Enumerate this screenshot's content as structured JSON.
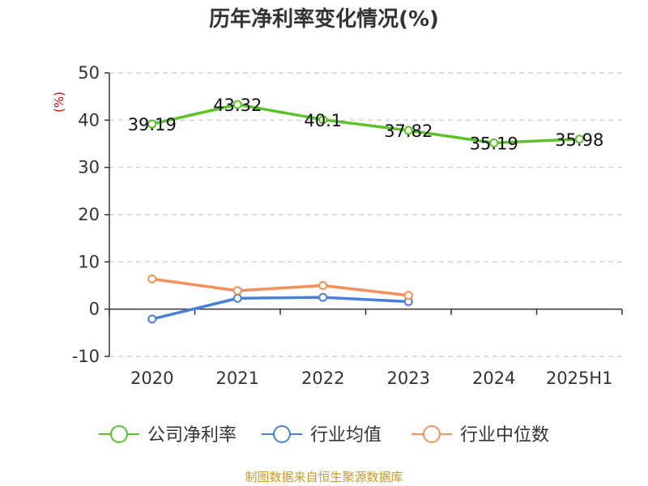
{
  "chart_data": {
    "type": "line",
    "title": "历年净利率变化情况(%)",
    "ylabel": "(%)",
    "xlabel": "",
    "categories": [
      "2020",
      "2021",
      "2022",
      "2023",
      "2024",
      "2025H1"
    ],
    "ylim": [
      -10,
      50
    ],
    "yticks": [
      -10,
      0,
      10,
      20,
      30,
      40,
      50
    ],
    "grid": true,
    "legend_position": "bottom",
    "series": [
      {
        "name": "公司净利率",
        "color": "#5cc22a",
        "values": [
          39.19,
          43.32,
          40.1,
          37.82,
          35.19,
          35.98
        ],
        "labels": [
          "39.19",
          "43.32",
          "40.1",
          "37.82",
          "35.19",
          "35.98"
        ]
      },
      {
        "name": "行业均值",
        "color": "#4a7fdc",
        "values": [
          -2.1,
          2.3,
          2.5,
          1.6,
          null,
          null
        ]
      },
      {
        "name": "行业中位数",
        "color": "#f5905a",
        "values": [
          6.4,
          3.9,
          5.0,
          2.9,
          null,
          null
        ]
      }
    ]
  },
  "footer": {
    "source": "制图数据来自恒生聚源数据库"
  }
}
